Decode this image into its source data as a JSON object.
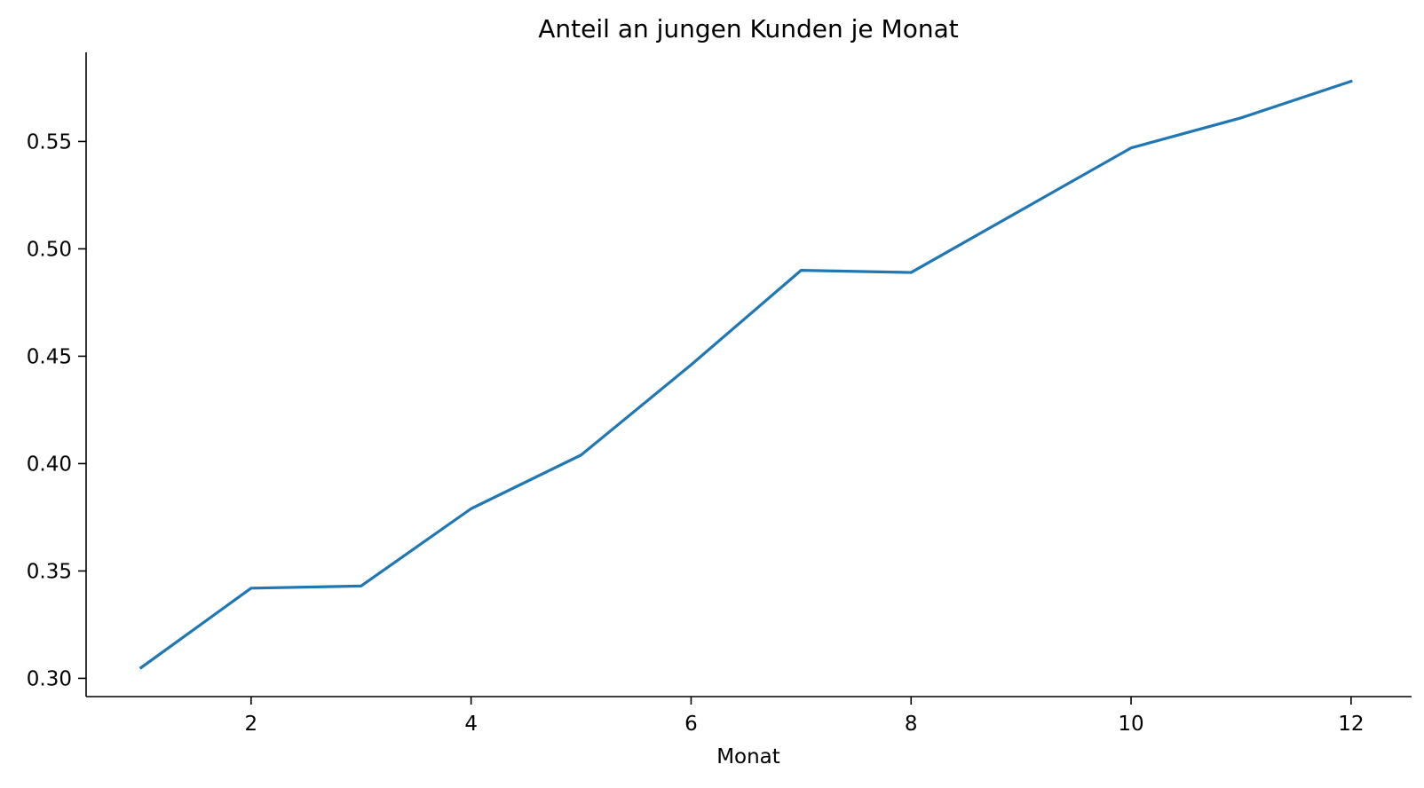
{
  "chart_data": {
    "type": "line",
    "title": "Anteil an jungen Kunden je Monat",
    "xlabel": "Monat",
    "ylabel": "",
    "xlim": [
      0.5,
      12.55
    ],
    "ylim": [
      0.2915,
      0.5915
    ],
    "xticks": [
      2,
      4,
      6,
      8,
      10,
      12
    ],
    "yticks": [
      0.3,
      0.35,
      0.4,
      0.45,
      0.5,
      0.55
    ],
    "xtick_labels": [
      "2",
      "4",
      "6",
      "8",
      "10",
      "12"
    ],
    "ytick_labels": [
      "0.30",
      "0.35",
      "0.40",
      "0.45",
      "0.50",
      "0.55"
    ],
    "grid": false,
    "spines": [
      "left",
      "bottom"
    ],
    "series": [
      {
        "color": "#1f77b4",
        "x": [
          1,
          2,
          3,
          4,
          5,
          6,
          7,
          8,
          9,
          10,
          11,
          12
        ],
        "y": [
          0.305,
          0.342,
          0.343,
          0.379,
          0.404,
          0.446,
          0.49,
          0.489,
          0.518,
          0.547,
          0.561,
          0.578
        ]
      }
    ]
  }
}
